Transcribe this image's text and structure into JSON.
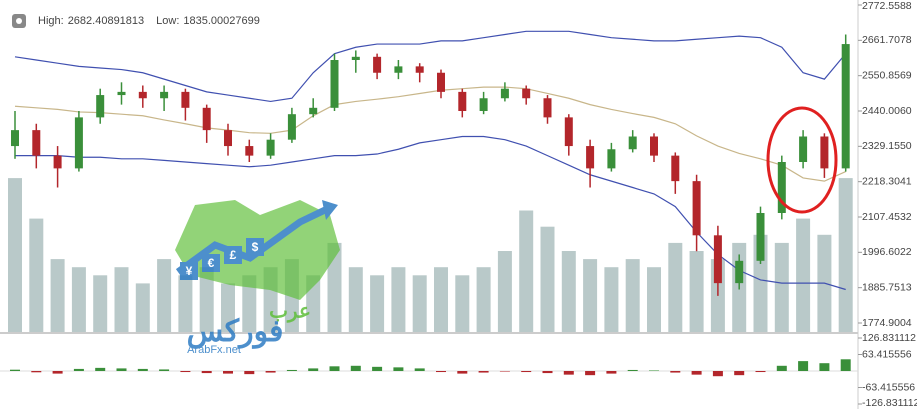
{
  "chart_data": {
    "type": "candlestick",
    "stats": [
      {
        "label": "High:",
        "value": 2682.40891813
      },
      {
        "label": "Low:",
        "value": 1835.00027699
      }
    ],
    "open": [
      2330,
      2380,
      2300,
      2260,
      2420,
      2490,
      2500,
      2480,
      2500,
      2450,
      2380,
      2330,
      2300,
      2350,
      2430,
      2450,
      2600,
      2610,
      2560,
      2580,
      2560,
      2500,
      2440,
      2480,
      2510,
      2480,
      2420,
      2330,
      2260,
      2320,
      2360,
      2300,
      2220,
      2050,
      1900,
      1970,
      2120,
      2280,
      2360,
      2260
    ],
    "high": [
      2440,
      2400,
      2330,
      2440,
      2510,
      2530,
      2520,
      2520,
      2510,
      2460,
      2400,
      2350,
      2370,
      2450,
      2480,
      2620,
      2630,
      2620,
      2600,
      2590,
      2570,
      2510,
      2500,
      2530,
      2520,
      2490,
      2430,
      2350,
      2340,
      2380,
      2370,
      2310,
      2240,
      2080,
      1990,
      2140,
      2300,
      2380,
      2370,
      2680
    ],
    "low": [
      2290,
      2260,
      2200,
      2250,
      2400,
      2460,
      2450,
      2440,
      2410,
      2340,
      2300,
      2280,
      2290,
      2340,
      2420,
      2440,
      2560,
      2540,
      2540,
      2530,
      2480,
      2420,
      2430,
      2470,
      2460,
      2400,
      2300,
      2200,
      2250,
      2310,
      2280,
      2180,
      2000,
      1860,
      1880,
      1960,
      2100,
      2260,
      2230,
      2250
    ],
    "close": [
      2380,
      2300,
      2260,
      2420,
      2490,
      2500,
      2480,
      2500,
      2450,
      2380,
      2330,
      2300,
      2350,
      2430,
      2450,
      2600,
      2610,
      2560,
      2580,
      2560,
      2500,
      2440,
      2480,
      2510,
      2480,
      2420,
      2330,
      2260,
      2320,
      2360,
      2300,
      2220,
      2050,
      1900,
      1970,
      2120,
      2280,
      2360,
      2260,
      2650
    ],
    "up_color": "#3a8f3a",
    "down_color": "#b3262b",
    "bands": [
      {
        "color": "#4050b0",
        "values": [
          2610,
          2600,
          2590,
          2580,
          2575,
          2570,
          2560,
          2540,
          2520,
          2500,
          2490,
          2480,
          2470,
          2480,
          2560,
          2620,
          2640,
          2650,
          2650,
          2650,
          2660,
          2660,
          2670,
          2680,
          2690,
          2690,
          2690,
          2680,
          2670,
          2665,
          2660,
          2660,
          2665,
          2670,
          2675,
          2670,
          2640,
          2560,
          2540,
          2620
        ]
      },
      {
        "color": "#c8b68a",
        "values": [
          2455,
          2450,
          2445,
          2437,
          2435,
          2430,
          2425,
          2412,
          2400,
          2387,
          2380,
          2372,
          2370,
          2380,
          2425,
          2460,
          2470,
          2477,
          2485,
          2495,
          2505,
          2510,
          2515,
          2515,
          2510,
          2495,
          2480,
          2460,
          2445,
          2432,
          2420,
          2400,
          2362,
          2330,
          2307,
          2290,
          2270,
          2230,
          2220,
          2250
        ]
      },
      {
        "color": "#4050b0",
        "values": [
          2300,
          2300,
          2300,
          2295,
          2295,
          2290,
          2290,
          2285,
          2280,
          2275,
          2270,
          2265,
          2270,
          2280,
          2290,
          2300,
          2300,
          2305,
          2320,
          2340,
          2350,
          2360,
          2360,
          2350,
          2330,
          2300,
          2270,
          2240,
          2220,
          2200,
          2180,
          2140,
          2060,
          1990,
          1940,
          1910,
          1900,
          1900,
          1900,
          1880
        ]
      }
    ],
    "volume": [
      95,
      70,
      45,
      40,
      35,
      40,
      30,
      45,
      35,
      40,
      30,
      35,
      40,
      45,
      35,
      55,
      40,
      35,
      40,
      35,
      40,
      35,
      40,
      50,
      75,
      65,
      50,
      45,
      40,
      45,
      40,
      55,
      50,
      45,
      55,
      60,
      55,
      70,
      60,
      95
    ],
    "volume_ylim": [
      0,
      100
    ],
    "volume_color": "#b9c9c9",
    "ylim": [
      1774.9004,
      2772.5588
    ],
    "yticks": [
      2772.5588,
      2661.7078,
      2550.8569,
      {
        "value": 2440.006,
        "label": "2440.0060"
      },
      {
        "value": 2329.155,
        "label": "2329.1550"
      },
      2218.3041,
      2107.4532,
      1996.6022,
      1885.7513,
      1774.9004
    ],
    "macd": {
      "values": [
        5,
        -5,
        -10,
        8,
        12,
        10,
        8,
        6,
        -4,
        -8,
        -10,
        -12,
        -6,
        4,
        10,
        18,
        20,
        16,
        14,
        10,
        -4,
        -10,
        -6,
        -2,
        -4,
        -8,
        -14,
        -16,
        -10,
        4,
        2,
        -6,
        -14,
        -20,
        -16,
        -4,
        20,
        38,
        30,
        45
      ],
      "up_color": "#3a8f3a",
      "down_color": "#b3262b"
    },
    "y2lim": [
      -126.831112,
      126.831112
    ],
    "y2ticks": [
      126.831112,
      63.415556,
      -63.415556,
      -126.831112
    ],
    "logo": {
      "symbols": [
        "¥",
        "€",
        "£",
        "$"
      ],
      "arabic_top": "عرب",
      "arabic_main": "فوركس",
      "site": "ArabFx.net"
    }
  }
}
